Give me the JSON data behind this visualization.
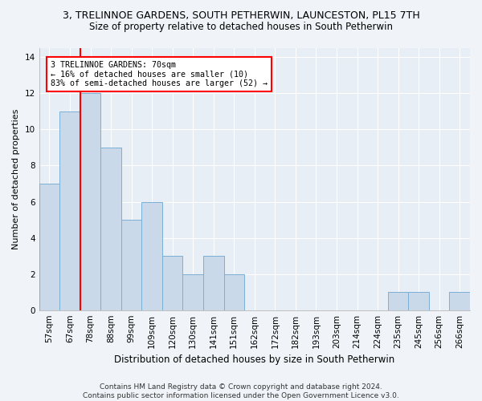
{
  "title": "3, TRELINNOE GARDENS, SOUTH PETHERWIN, LAUNCESTON, PL15 7TH",
  "subtitle": "Size of property relative to detached houses in South Petherwin",
  "xlabel": "Distribution of detached houses by size in South Petherwin",
  "ylabel": "Number of detached properties",
  "bar_color": "#cad9ea",
  "bar_edge_color": "#7aafd4",
  "categories": [
    "57sqm",
    "67sqm",
    "78sqm",
    "88sqm",
    "99sqm",
    "109sqm",
    "120sqm",
    "130sqm",
    "141sqm",
    "151sqm",
    "162sqm",
    "172sqm",
    "182sqm",
    "193sqm",
    "203sqm",
    "214sqm",
    "224sqm",
    "235sqm",
    "245sqm",
    "256sqm",
    "266sqm"
  ],
  "values": [
    7,
    11,
    12,
    9,
    5,
    6,
    3,
    2,
    3,
    2,
    0,
    0,
    0,
    0,
    0,
    0,
    0,
    1,
    1,
    0,
    1
  ],
  "ylim": [
    0,
    14.5
  ],
  "yticks": [
    0,
    2,
    4,
    6,
    8,
    10,
    12,
    14
  ],
  "vline_index": 1.5,
  "annotation_text": "3 TRELINNOE GARDENS: 70sqm\n← 16% of detached houses are smaller (10)\n83% of semi-detached houses are larger (52) →",
  "footer": "Contains HM Land Registry data © Crown copyright and database right 2024.\nContains public sector information licensed under the Open Government Licence v3.0.",
  "background_color": "#f0f4f8",
  "ax_background_color": "#e8eef5",
  "grid_color": "#ffffff",
  "title_fontsize": 9,
  "subtitle_fontsize": 8.5,
  "xlabel_fontsize": 8.5,
  "ylabel_fontsize": 8,
  "tick_fontsize": 7.5,
  "footer_fontsize": 6.5
}
